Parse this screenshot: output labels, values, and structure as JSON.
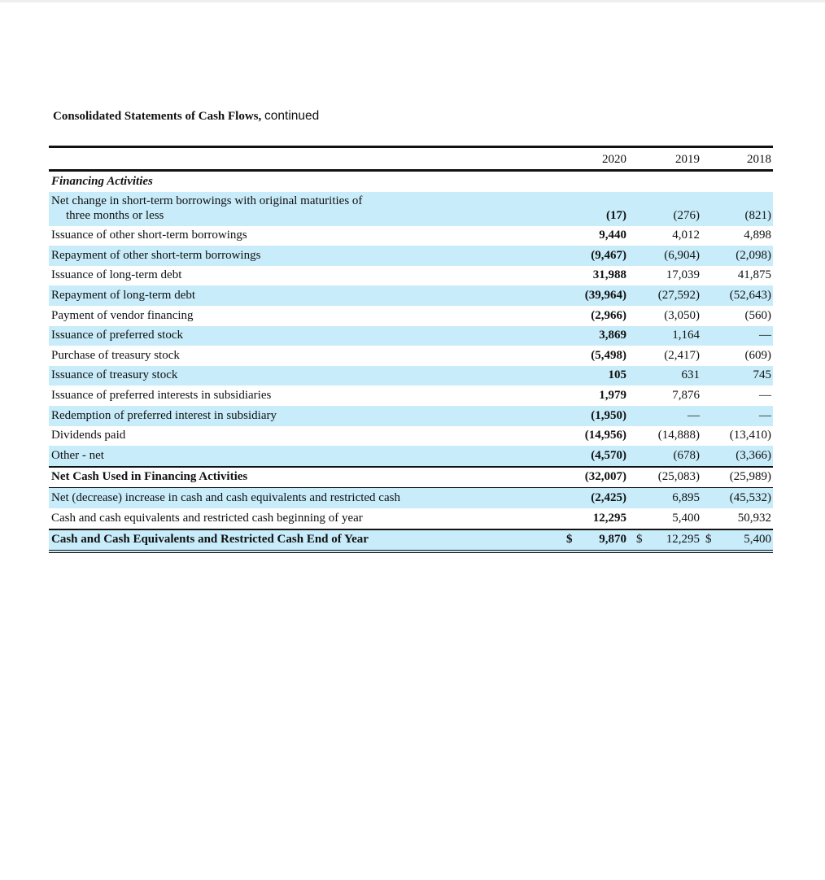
{
  "title": {
    "main": "Consolidated Statements of Cash Flows,",
    "suffix": "continued"
  },
  "columns": [
    "2020",
    "2019",
    "2018"
  ],
  "section": "Financing Activities",
  "rows": [
    {
      "label": "Net change in short-term borrowings with original maturities of",
      "label2": "three months or less",
      "values": [
        "(17)",
        "(276)",
        "(821)"
      ]
    },
    {
      "label": "Issuance of other short-term borrowings",
      "values": [
        "9,440",
        "4,012",
        "4,898"
      ]
    },
    {
      "label": "Repayment of other short-term borrowings",
      "values": [
        "(9,467)",
        "(6,904)",
        "(2,098)"
      ]
    },
    {
      "label": "Issuance of long-term debt",
      "values": [
        "31,988",
        "17,039",
        "41,875"
      ]
    },
    {
      "label": "Repayment of long-term debt",
      "values": [
        "(39,964)",
        "(27,592)",
        "(52,643)"
      ]
    },
    {
      "label": "Payment of vendor financing",
      "values": [
        "(2,966)",
        "(3,050)",
        "(560)"
      ]
    },
    {
      "label": "Issuance of preferred stock",
      "values": [
        "3,869",
        "1,164",
        "—"
      ]
    },
    {
      "label": "Purchase of treasury stock",
      "values": [
        "(5,498)",
        "(2,417)",
        "(609)"
      ]
    },
    {
      "label": "Issuance of treasury stock",
      "values": [
        "105",
        "631",
        "745"
      ]
    },
    {
      "label": "Issuance of preferred interests in subsidiaries",
      "values": [
        "1,979",
        "7,876",
        "—"
      ]
    },
    {
      "label": "Redemption of preferred interest in subsidiary",
      "values": [
        "(1,950)",
        "—",
        "—"
      ]
    },
    {
      "label": "Dividends paid",
      "values": [
        "(14,956)",
        "(14,888)",
        "(13,410)"
      ]
    },
    {
      "label": "Other - net",
      "values": [
        "(4,570)",
        "(678)",
        "(3,366)"
      ]
    },
    {
      "label": "Net Cash Used in Financing Activities",
      "values": [
        "(32,007)",
        "(25,083)",
        "(25,989)"
      ]
    },
    {
      "label": "Net (decrease) increase in cash and cash equivalents and restricted cash",
      "values": [
        "(2,425)",
        "6,895",
        "(45,532)"
      ]
    },
    {
      "label": "Cash and cash equivalents and restricted cash beginning of year",
      "values": [
        "12,295",
        "5,400",
        "50,932"
      ]
    },
    {
      "label": "Cash and Cash Equivalents and Restricted Cash End of Year",
      "currency": "$",
      "values": [
        "9,870",
        "12,295",
        "5,400"
      ]
    }
  ]
}
